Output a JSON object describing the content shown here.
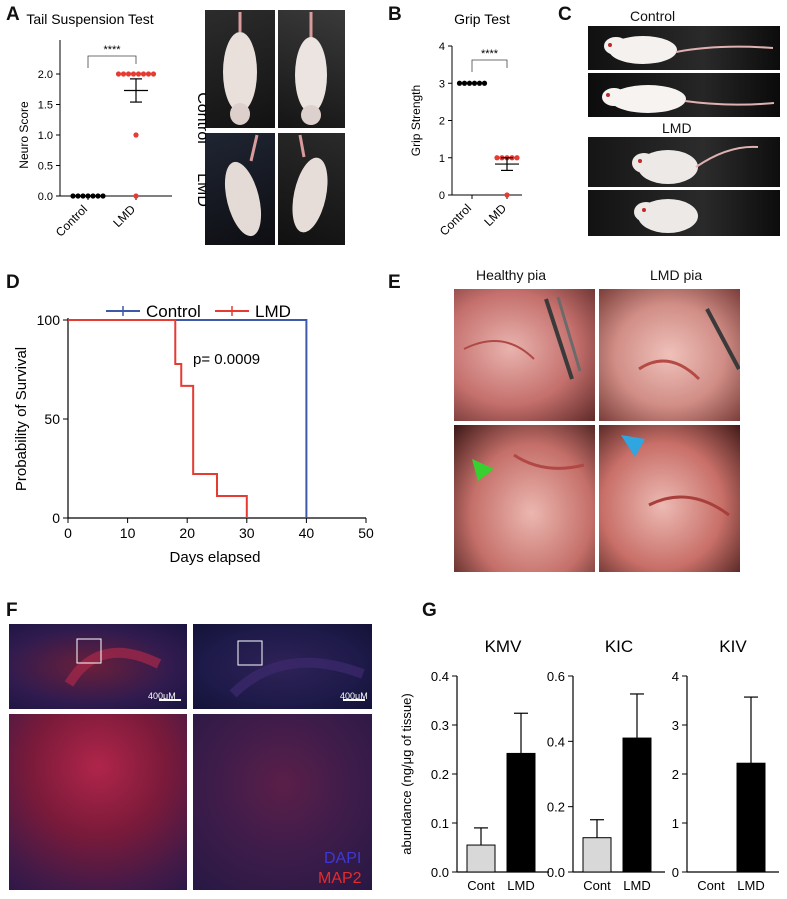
{
  "panels": {
    "a": "A",
    "b": "B",
    "c": "C",
    "d": "D",
    "e": "E",
    "f": "F",
    "g": "G"
  },
  "colors": {
    "red": "#e53b33",
    "blue": "#3d5aa8",
    "black": "#000000",
    "grey": "#d8d8d8"
  },
  "panel_a": {
    "photo_label_control": "Control",
    "photo_label_lmd": "LMD"
  },
  "panel_c": {
    "label_control": "Control",
    "label_lmd": "LMD"
  },
  "panel_e": {
    "col_healthy": "Healthy pia",
    "col_lmd": "LMD pia"
  },
  "panel_f": {
    "scale_left": "400μM",
    "scale_right": "400μM",
    "legend_dapi": "DAPI",
    "legend_map2": "MAP2"
  },
  "chart_data": [
    {
      "id": "A",
      "type": "scatter",
      "title": "Tail Suspension Test",
      "xlabel": "",
      "ylabel": "Neuro Score",
      "categories": [
        "Control",
        "LMD"
      ],
      "ylim": [
        0,
        2.0
      ],
      "yticks": [
        "0.0",
        "0.5",
        "1.0",
        "1.5",
        "2.0"
      ],
      "significance": "****",
      "series": [
        {
          "values": [
            0,
            0,
            0,
            0,
            0,
            0,
            0
          ],
          "color": "#000000",
          "mean": 0,
          "sem": 0
        },
        {
          "values": [
            2,
            2,
            2,
            2,
            2,
            2,
            2,
            2,
            1,
            0
          ],
          "color": "#e53b33",
          "mean": 1.73,
          "sem": 0.19
        }
      ]
    },
    {
      "id": "B",
      "type": "scatter",
      "title": "Grip Test",
      "xlabel": "",
      "ylabel": "Grip Strength",
      "categories": [
        "Control",
        "LMD"
      ],
      "ylim": [
        0,
        4
      ],
      "yticks": [
        "0",
        "1",
        "2",
        "3",
        "4"
      ],
      "significance": "****",
      "series": [
        {
          "values": [
            3,
            3,
            3,
            3,
            3,
            3
          ],
          "color": "#000000",
          "mean": 3,
          "sem": 0
        },
        {
          "values": [
            1,
            1,
            1,
            1,
            1,
            0
          ],
          "color": "#e53b33",
          "mean": 0.83,
          "sem": 0.17
        }
      ]
    },
    {
      "id": "D",
      "type": "line",
      "title": "",
      "xlabel": "Days elapsed",
      "ylabel": "Probability of Survival",
      "xlim": [
        0,
        50
      ],
      "ylim": [
        0,
        100
      ],
      "xticks": [
        "0",
        "10",
        "20",
        "30",
        "40",
        "50"
      ],
      "yticks": [
        "0",
        "50",
        "100"
      ],
      "annotation": "p= 0.0009",
      "legend": "top",
      "series": [
        {
          "name": "Control",
          "color": "#3d5aa8",
          "steps": [
            [
              0,
              100
            ],
            [
              40,
              100
            ],
            [
              40,
              0
            ]
          ]
        },
        {
          "name": "LMD",
          "color": "#e53b33",
          "steps": [
            [
              0,
              100
            ],
            [
              18,
              100
            ],
            [
              18,
              77.8
            ],
            [
              19,
              77.8
            ],
            [
              19,
              66.7
            ],
            [
              21,
              66.7
            ],
            [
              21,
              22.2
            ],
            [
              25,
              22.2
            ],
            [
              25,
              11.1
            ],
            [
              30,
              11.1
            ],
            [
              30,
              0
            ]
          ]
        }
      ]
    },
    {
      "id": "G",
      "type": "bar",
      "ylabel": "abundance (ng/μg of tissue)",
      "categories": [
        "Cont",
        "LMD"
      ],
      "subplots": [
        {
          "title": "KMV",
          "ylim": [
            0,
            0.4
          ],
          "yticks": [
            "0.0",
            "0.1",
            "0.2",
            "0.3",
            "0.4"
          ],
          "values": [
            0.055,
            0.242
          ],
          "errors": [
            0.035,
            0.082
          ]
        },
        {
          "title": "KIC",
          "ylim": [
            0,
            0.6
          ],
          "yticks": [
            "0.0",
            "0.2",
            "0.4",
            "0.6"
          ],
          "values": [
            0.105,
            0.41
          ],
          "errors": [
            0.055,
            0.135
          ]
        },
        {
          "title": "KIV",
          "ylim": [
            0,
            4
          ],
          "yticks": [
            "0",
            "1",
            "2",
            "3",
            "4"
          ],
          "values": [
            0,
            2.22
          ],
          "errors": [
            0,
            1.35
          ]
        }
      ]
    }
  ]
}
